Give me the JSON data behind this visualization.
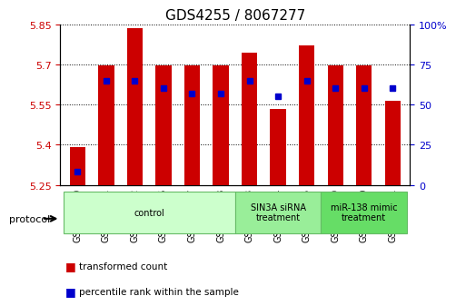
{
  "title": "GDS4255 / 8067277",
  "samples": [
    "GSM952740",
    "GSM952741",
    "GSM952742",
    "GSM952746",
    "GSM952747",
    "GSM952748",
    "GSM952743",
    "GSM952744",
    "GSM952745",
    "GSM952749",
    "GSM952750",
    "GSM952751"
  ],
  "transformed_counts": [
    5.39,
    5.695,
    5.835,
    5.695,
    5.695,
    5.695,
    5.745,
    5.535,
    5.77,
    5.695,
    5.695,
    5.565
  ],
  "percentile_ranks": [
    8,
    65,
    65,
    60,
    57,
    57,
    65,
    55,
    65,
    60,
    60,
    60
  ],
  "y_min": 5.25,
  "y_max": 5.85,
  "y_ticks": [
    5.25,
    5.4,
    5.55,
    5.7,
    5.85
  ],
  "y_tick_labels": [
    "5.25",
    "5.4",
    "5.55",
    "5.7",
    "5.85"
  ],
  "y2_ticks": [
    0,
    25,
    50,
    75,
    100
  ],
  "y2_tick_labels": [
    "0",
    "25",
    "50",
    "75",
    "100%"
  ],
  "bar_color": "#cc0000",
  "dot_color": "#0000cc",
  "bar_bottom": 5.25,
  "groups": [
    {
      "label": "control",
      "start": 0,
      "end": 6,
      "color": "#ccffcc",
      "edge_color": "#66bb66"
    },
    {
      "label": "SIN3A siRNA\ntreatment",
      "start": 6,
      "end": 9,
      "color": "#99ee99",
      "edge_color": "#66bb66"
    },
    {
      "label": "miR-138 mimic\ntreatment",
      "start": 9,
      "end": 12,
      "color": "#66dd66",
      "edge_color": "#66bb66"
    }
  ],
  "xlabel_fontsize": 7,
  "title_fontsize": 11,
  "tick_color_left": "#cc0000",
  "tick_color_right": "#0000cc",
  "background_color": "#ffffff",
  "plot_bg_color": "#ffffff",
  "grid_color": "#000000",
  "bar_width": 0.55
}
